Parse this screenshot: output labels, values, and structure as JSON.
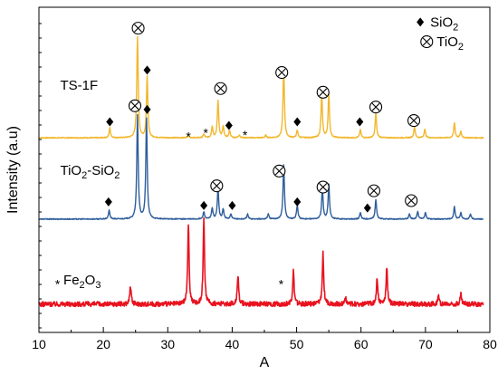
{
  "chart_data": {
    "type": "line",
    "xlabel": "A",
    "ylabel": "Intensity (a.u)",
    "xlim": [
      10,
      80
    ],
    "xticks": [
      "10",
      "20",
      "30",
      "40",
      "50",
      "60",
      "70",
      "80"
    ],
    "grid": false,
    "series": [
      {
        "name": "TS-1F",
        "color": "#F2B72C",
        "baseline": 0.1,
        "noise": 0.02,
        "peaks": [
          {
            "x": 21.0,
            "h": 0.4
          },
          {
            "x": 25.3,
            "h": 4.1
          },
          {
            "x": 26.8,
            "h": 2.5
          },
          {
            "x": 33.2,
            "h": 0.12
          },
          {
            "x": 35.6,
            "h": 0.15
          },
          {
            "x": 36.9,
            "h": 0.45
          },
          {
            "x": 37.8,
            "h": 1.5
          },
          {
            "x": 38.6,
            "h": 0.45
          },
          {
            "x": 39.6,
            "h": 0.3
          },
          {
            "x": 41.1,
            "h": 0.12
          },
          {
            "x": 45.2,
            "h": 0.1
          },
          {
            "x": 48.0,
            "h": 2.85
          },
          {
            "x": 50.1,
            "h": 0.3
          },
          {
            "x": 53.9,
            "h": 1.75
          },
          {
            "x": 55.0,
            "h": 1.75
          },
          {
            "x": 59.9,
            "h": 0.32
          },
          {
            "x": 62.3,
            "h": 1.0
          },
          {
            "x": 68.3,
            "h": 0.45
          },
          {
            "x": 69.9,
            "h": 0.35
          },
          {
            "x": 74.5,
            "h": 0.6
          },
          {
            "x": 75.5,
            "h": 0.25
          }
        ]
      },
      {
        "name": "TiO2-SiO2",
        "color": "#2E5E9B",
        "baseline": -3.2,
        "noise": 0.02,
        "peaks": [
          {
            "x": 20.9,
            "h": 0.35
          },
          {
            "x": 25.3,
            "h": 4.2
          },
          {
            "x": 26.7,
            "h": 4.05
          },
          {
            "x": 35.6,
            "h": 0.3
          },
          {
            "x": 36.9,
            "h": 0.45
          },
          {
            "x": 37.8,
            "h": 1.25
          },
          {
            "x": 38.6,
            "h": 0.4
          },
          {
            "x": 39.8,
            "h": 0.2
          },
          {
            "x": 42.4,
            "h": 0.2
          },
          {
            "x": 45.6,
            "h": 0.2
          },
          {
            "x": 48.0,
            "h": 2.2
          },
          {
            "x": 50.1,
            "h": 0.55
          },
          {
            "x": 54.0,
            "h": 1.25
          },
          {
            "x": 55.0,
            "h": 1.4
          },
          {
            "x": 59.9,
            "h": 0.25
          },
          {
            "x": 62.3,
            "h": 0.8
          },
          {
            "x": 67.5,
            "h": 0.2
          },
          {
            "x": 68.8,
            "h": 0.3
          },
          {
            "x": 70.0,
            "h": 0.25
          },
          {
            "x": 74.5,
            "h": 0.5
          },
          {
            "x": 75.5,
            "h": 0.25
          },
          {
            "x": 77.0,
            "h": 0.2
          }
        ]
      },
      {
        "name": "Fe2O3",
        "color": "#E8131F",
        "baseline": -6.65,
        "noise": 0.1,
        "peaks": [
          {
            "x": 24.2,
            "h": 0.75
          },
          {
            "x": 33.2,
            "h": 3.25
          },
          {
            "x": 35.6,
            "h": 3.4
          },
          {
            "x": 40.9,
            "h": 1.2
          },
          {
            "x": 49.5,
            "h": 1.35
          },
          {
            "x": 54.1,
            "h": 2.05
          },
          {
            "x": 57.6,
            "h": 0.3
          },
          {
            "x": 62.5,
            "h": 1.05
          },
          {
            "x": 64.0,
            "h": 1.5
          },
          {
            "x": 72.0,
            "h": 0.35
          },
          {
            "x": 75.5,
            "h": 0.4
          }
        ]
      }
    ],
    "annotations": {
      "labels": [
        {
          "text": "TS-1F",
          "x": 13.3,
          "y": 2.05
        },
        {
          "text": "TiO",
          "sub": "2",
          "text2": "-SiO",
          "sub2": "2",
          "x": 13.3,
          "y": -1.4
        },
        {
          "text": "Fe",
          "sub": "2",
          "text2": "O",
          "sub2": "3",
          "x": 13.8,
          "y": -5.85
        }
      ],
      "diamonds": [
        {
          "x": 21.0,
          "y": 0.75
        },
        {
          "x": 26.8,
          "y": 2.85
        },
        {
          "x": 39.5,
          "y": 0.6
        },
        {
          "x": 50.1,
          "y": 0.75
        },
        {
          "x": 59.8,
          "y": 0.75
        },
        {
          "x": 20.8,
          "y": -2.5
        },
        {
          "x": 26.8,
          "y": 1.25
        },
        {
          "x": 35.6,
          "y": -2.65
        },
        {
          "x": 40.0,
          "y": -2.65
        },
        {
          "x": 50.1,
          "y": -2.5
        },
        {
          "x": 61.0,
          "y": -2.75
        }
      ],
      "circles": [
        {
          "x": 25.4,
          "y": 4.55
        },
        {
          "x": 38.2,
          "y": 2.1
        },
        {
          "x": 47.7,
          "y": 2.75
        },
        {
          "x": 54.1,
          "y": 1.95
        },
        {
          "x": 62.3,
          "y": 1.35
        },
        {
          "x": 68.2,
          "y": 0.8
        },
        {
          "x": 24.9,
          "y": 1.4
        },
        {
          "x": 37.6,
          "y": -1.85
        },
        {
          "x": 47.3,
          "y": -1.25
        },
        {
          "x": 54.1,
          "y": -1.9
        },
        {
          "x": 62.0,
          "y": -2.05
        },
        {
          "x": 67.8,
          "y": -2.45
        }
      ],
      "stars": [
        {
          "x": 33.2,
          "y": 0.2
        },
        {
          "x": 35.9,
          "y": 0.35
        },
        {
          "x": 42.0,
          "y": 0.25
        },
        {
          "x": 47.6,
          "y": -5.8
        },
        {
          "x": 12.9,
          "y": -5.8
        }
      ]
    },
    "legend": {
      "placement": "top-right",
      "entries": [
        {
          "marker": "diamond",
          "text": "SiO",
          "sub": "2",
          "x": 69.2,
          "y": 4.8
        },
        {
          "marker": "circled-x",
          "text": "TiO",
          "sub": "2",
          "x": 70.2,
          "y": 4.0
        }
      ]
    }
  }
}
